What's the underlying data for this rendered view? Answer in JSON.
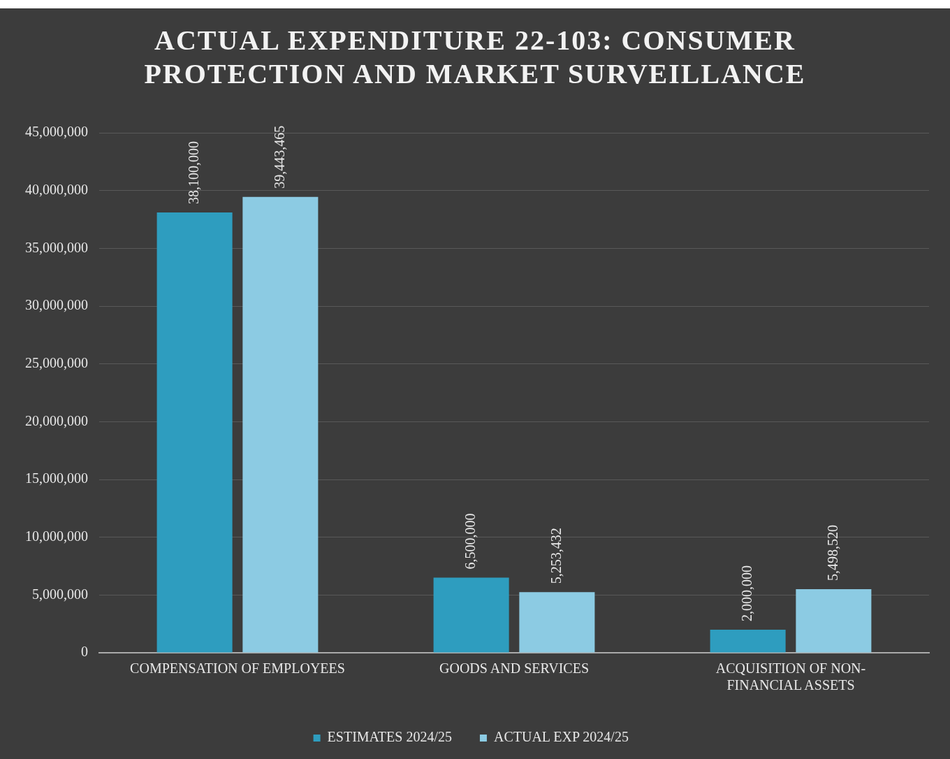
{
  "chart_data": {
    "type": "bar",
    "title": "ACTUAL EXPENDITURE 22-103: CONSUMER PROTECTION AND MARKET SURVEILLANCE",
    "categories": [
      "COMPENSATION OF EMPLOYEES",
      "GOODS AND SERVICES",
      "ACQUISITION OF NON-FINANCIAL ASSETS"
    ],
    "series": [
      {
        "name": "ESTIMATES 2024/25",
        "color": "#2e9dbf",
        "values": [
          38100000,
          6500000,
          2000000
        ],
        "value_labels": [
          "38,100,000",
          "6,500,000",
          "2,000,000"
        ]
      },
      {
        "name": "ACTUAL EXP 2024/25",
        "color": "#8ccbe3",
        "values": [
          39443465,
          5253432,
          5498520
        ],
        "value_labels": [
          "39,443,465",
          "5,253,432",
          "5,498,520"
        ]
      }
    ],
    "ylim": [
      0,
      45000000
    ],
    "yticks": [
      {
        "value": 0,
        "label": "0"
      },
      {
        "value": 5000000,
        "label": "5,000,000"
      },
      {
        "value": 10000000,
        "label": "10,000,000"
      },
      {
        "value": 15000000,
        "label": "15,000,000"
      },
      {
        "value": 20000000,
        "label": "20,000,000"
      },
      {
        "value": 25000000,
        "label": "25,000,000"
      },
      {
        "value": 30000000,
        "label": "30,000,000"
      },
      {
        "value": 35000000,
        "label": "35,000,000"
      },
      {
        "value": 40000000,
        "label": "40,000,000"
      },
      {
        "value": 45000000,
        "label": "45,000,000"
      }
    ],
    "grid": "y",
    "legend": "bottom"
  }
}
